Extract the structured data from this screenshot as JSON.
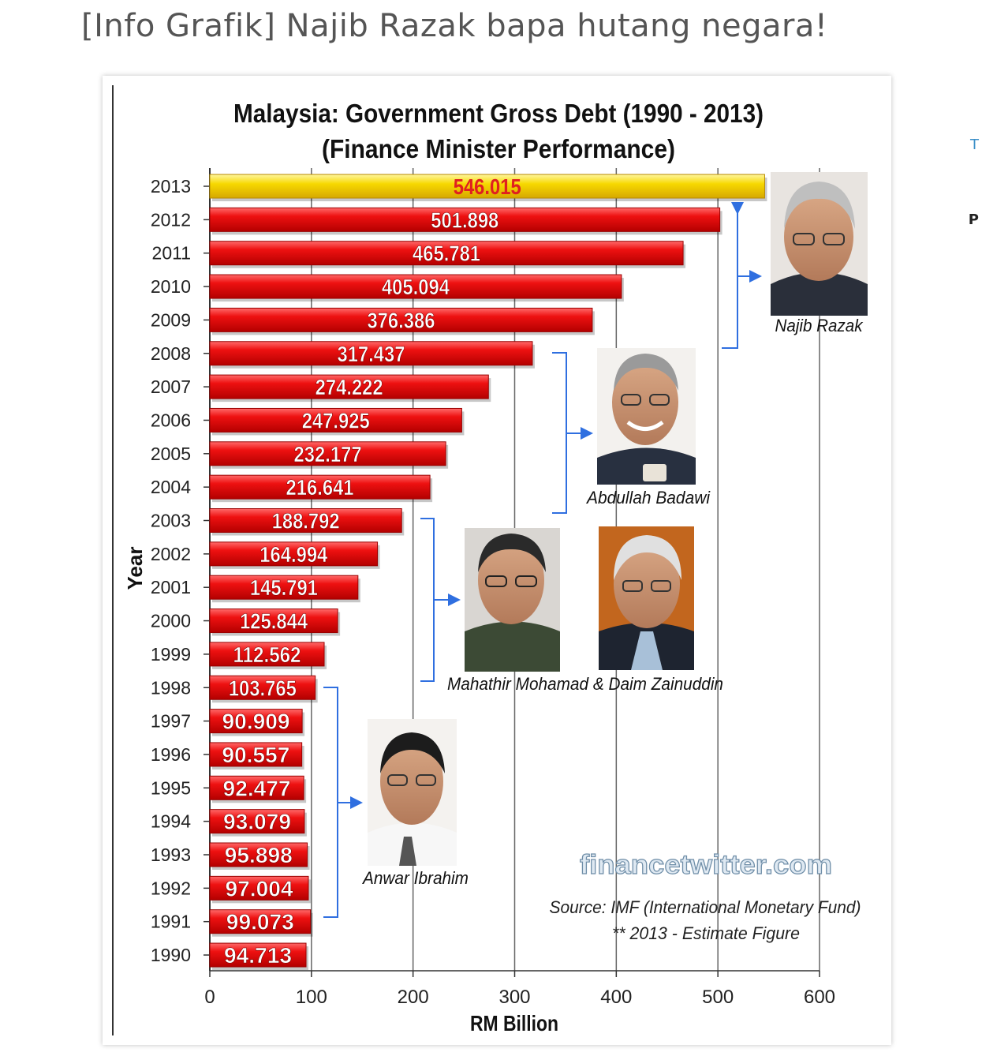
{
  "page": {
    "title": "[Info Grafik] Najib Razak bapa hutang negara!",
    "side_letters": [
      "T",
      "P"
    ]
  },
  "chart_data": {
    "type": "bar",
    "orientation": "horizontal",
    "title": "Malaysia: Government Gross Debt (1990 - 2013)",
    "subtitle": "(Finance Minister Performance)",
    "xlabel": "RM Billion",
    "ylabel": "Year",
    "xlim": [
      0,
      600
    ],
    "xticks": [
      "0",
      "100",
      "200",
      "300",
      "400",
      "500",
      "600"
    ],
    "categories": [
      "2013",
      "2012",
      "2011",
      "2010",
      "2009",
      "2008",
      "2007",
      "2006",
      "2005",
      "2004",
      "2003",
      "2002",
      "2001",
      "2000",
      "1999",
      "1998",
      "1997",
      "1996",
      "1995",
      "1994",
      "1993",
      "1992",
      "1991",
      "1990"
    ],
    "values": [
      546.015,
      501.898,
      465.781,
      405.094,
      376.386,
      317.437,
      274.222,
      247.925,
      232.177,
      216.641,
      188.792,
      164.994,
      145.791,
      125.844,
      112.562,
      103.765,
      90.909,
      90.557,
      92.477,
      93.079,
      95.898,
      97.004,
      99.073,
      94.713
    ],
    "value_labels": [
      "546.015",
      "501.898",
      "465.781",
      "405.094",
      "376.386",
      "317.437",
      "274.222",
      "247.925",
      "232.177",
      "216.641",
      "188.792",
      "164.994",
      "145.791",
      "125.844",
      "112.562",
      "103.765",
      "90.909",
      "90.557",
      "92.477",
      "93.079",
      "95.898",
      "97.004",
      "99.073",
      "94.713"
    ],
    "highlight": {
      "category": "2013",
      "color": "#f5d200",
      "label_color": "#e02020"
    },
    "bar_color": "#e81010",
    "grid": true,
    "ministers": [
      {
        "name": "Najib Razak",
        "years": "2009-2013"
      },
      {
        "name": "Abdullah Badawi",
        "years": "2004-2008"
      },
      {
        "name": "Mahathir Mohamad & Daim Zainuddin",
        "years": "1999-2003"
      },
      {
        "name": "Anwar Ibrahim",
        "years": "1991-1998"
      }
    ],
    "watermark": "financetwitter.com",
    "source": "Source: IMF (International Monetary Fund)",
    "note": "** 2013 - Estimate Figure"
  }
}
